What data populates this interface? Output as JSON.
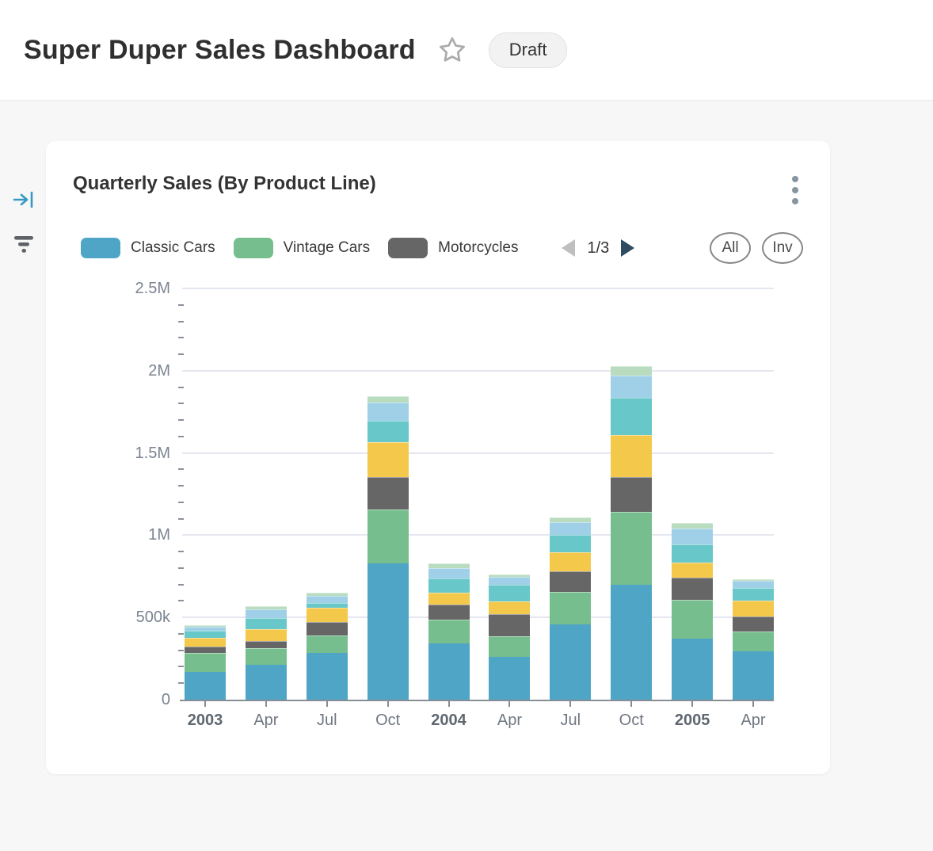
{
  "header": {
    "title": "Super Duper Sales Dashboard",
    "status_badge": "Draft"
  },
  "icons": {
    "favorite": "star-outline",
    "collapse_panel": "arrow-to-line",
    "filter": "filter-lines",
    "card_menu": "kebab-vertical-dots"
  },
  "card": {
    "title": "Quarterly Sales (By Product Line)",
    "pager": {
      "label": "1/3",
      "prev": "left-triangle",
      "next": "right-triangle"
    },
    "buttons": {
      "all": "All",
      "inv": "Inv"
    }
  },
  "colors": {
    "accent_icon": "#3599C4",
    "pager_next": "#2E4B61",
    "pager_prev_disabled": "#BFBFBF",
    "gridline": "#E4E7F0",
    "axis": "#878D95"
  },
  "chart_data": {
    "type": "bar",
    "stacked": true,
    "title": "Quarterly Sales (By Product Line)",
    "legend_position": "top",
    "grid": "horizontal-major-only",
    "ylim": [
      0,
      2500000
    ],
    "ytick_labels_top_to_bottom": [
      "2.5M",
      "2M",
      "1.5M",
      "1M",
      "500k",
      "0"
    ],
    "minor_tick_step": 100000,
    "categories": [
      {
        "label": "2003",
        "bold": true
      },
      {
        "label": "Apr",
        "bold": false
      },
      {
        "label": "Jul",
        "bold": false
      },
      {
        "label": "Oct",
        "bold": false
      },
      {
        "label": "2004",
        "bold": true
      },
      {
        "label": "Apr",
        "bold": false
      },
      {
        "label": "Jul",
        "bold": false
      },
      {
        "label": "Oct",
        "bold": false
      },
      {
        "label": "2005",
        "bold": true
      },
      {
        "label": "Apr",
        "bold": false
      }
    ],
    "series": [
      {
        "name": "Classic Cars",
        "color": "#4FA5C6",
        "in_legend": true,
        "values": [
          170000,
          212000,
          283000,
          827000,
          341000,
          258000,
          460000,
          698000,
          373000,
          292000
        ]
      },
      {
        "name": "Vintage Cars",
        "color": "#76BE8D",
        "in_legend": true,
        "values": [
          112000,
          103000,
          107000,
          328000,
          148000,
          129000,
          193000,
          446000,
          235000,
          122000
        ]
      },
      {
        "name": "Motorcycles",
        "color": "#666666",
        "in_legend": true,
        "values": [
          40000,
          40000,
          84000,
          201000,
          87000,
          132000,
          129000,
          211000,
          133000,
          93000
        ]
      },
      {
        "name": "",
        "color": "#F3C84B",
        "in_legend": false,
        "values": [
          56000,
          72000,
          83000,
          211000,
          75000,
          77000,
          116000,
          255000,
          94000,
          94000
        ]
      },
      {
        "name": "",
        "color": "#68C7C8",
        "in_legend": false,
        "values": [
          40000,
          71000,
          32000,
          127000,
          84000,
          100000,
          105000,
          227000,
          109000,
          81000
        ]
      },
      {
        "name": "",
        "color": "#9FD0E7",
        "in_legend": false,
        "values": [
          27000,
          51000,
          41000,
          111000,
          64000,
          50000,
          76000,
          135000,
          97000,
          40000
        ]
      },
      {
        "name": "",
        "color": "#B9DCBF",
        "in_legend": false,
        "values": [
          10000,
          18000,
          22000,
          40000,
          29000,
          16000,
          29000,
          57000,
          32000,
          10000
        ]
      }
    ]
  }
}
